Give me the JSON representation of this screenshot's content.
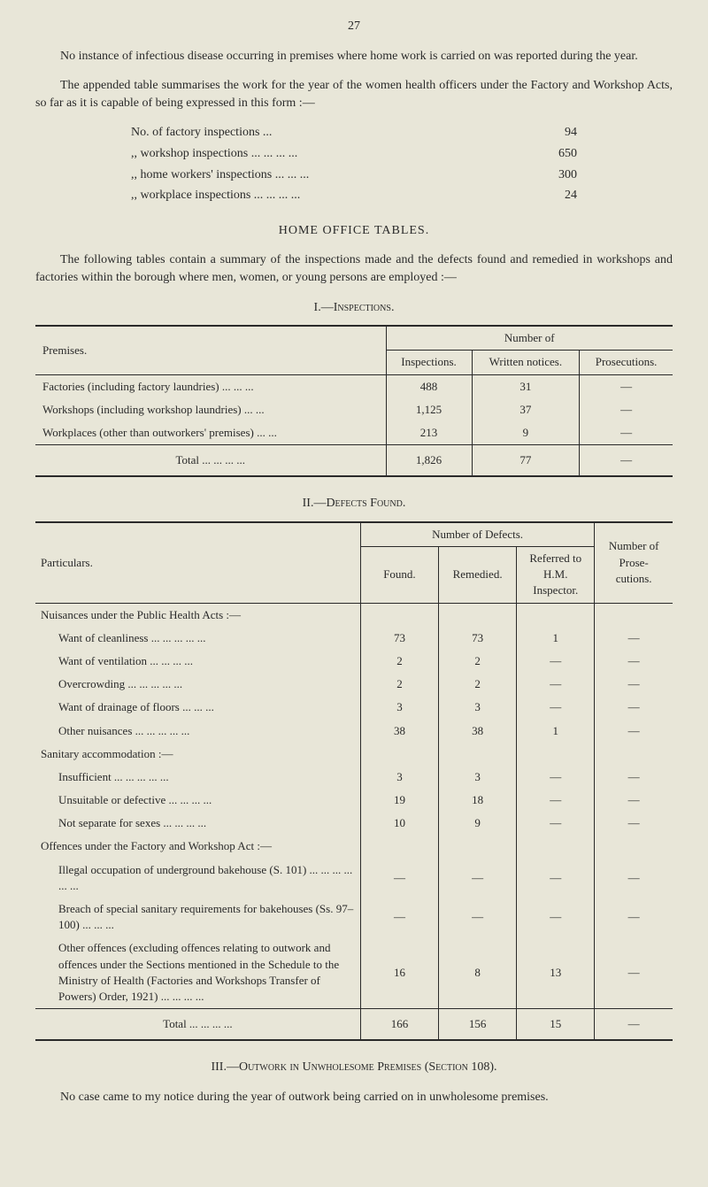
{
  "page_number": "27",
  "intro": {
    "para1": "No instance of infectious disease occurring in premises where home work is carried on was reported during the year.",
    "para2": "The appended table summarises the work for the year of the women health officers under the Factory and Workshop Acts, so far as it is capable of being expressed in this form :—"
  },
  "counts": [
    {
      "label": "No. of factory inspections ...",
      "value": "94"
    },
    {
      "label": ",, workshop inspections ...   ...   ...   ...",
      "value": "650"
    },
    {
      "label": ",, home workers' inspections   ...   ...   ...",
      "value": "300"
    },
    {
      "label": ",, workplace inspections ...   ...   ...   ...",
      "value": "24"
    }
  ],
  "home_office_heading": "HOME OFFICE TABLES.",
  "home_office_intro": "The following tables contain a summary of the inspections made and the defects found and remedied in workshops and factories within the borough where men, women, or young persons are employed :—",
  "table1": {
    "heading": "I.—Inspections.",
    "col_premises": "Premises.",
    "col_numberof": "Number of",
    "col_inspections": "Inspections.",
    "col_written": "Written notices.",
    "col_prosecutions": "Prosecutions.",
    "rows": [
      {
        "premises": "Factories (including factory laundries)   ...   ...   ...",
        "inspections": "488",
        "written": "31",
        "prosecutions": "—"
      },
      {
        "premises": "Workshops (including workshop laundries)   ...   ...",
        "inspections": "1,125",
        "written": "37",
        "prosecutions": "—"
      },
      {
        "premises": "Workplaces (other than outworkers' premises)   ...   ...",
        "inspections": "213",
        "written": "9",
        "prosecutions": "—"
      }
    ],
    "total_label": "Total   ...   ...   ...   ...",
    "total": {
      "inspections": "1,826",
      "written": "77",
      "prosecutions": "—"
    }
  },
  "table2": {
    "heading": "II.—Defects Found.",
    "col_particulars": "Particulars.",
    "col_numberof": "Number of Defects.",
    "col_found": "Found.",
    "col_remedied": "Remedied.",
    "col_referred": "Referred to H.M. Inspector.",
    "col_prosecutions": "Number of Prose- cutions.",
    "groups": [
      {
        "header": "Nuisances under the Public Health Acts :—",
        "rows": [
          {
            "label": "Want of cleanliness   ...   ...   ...   ...   ...",
            "found": "73",
            "rem": "73",
            "ref": "1",
            "pros": "—"
          },
          {
            "label": "Want of ventilation   ...   ...   ...   ...",
            "found": "2",
            "rem": "2",
            "ref": "—",
            "pros": "—"
          },
          {
            "label": "Overcrowding   ...   ...   ...   ...   ...",
            "found": "2",
            "rem": "2",
            "ref": "—",
            "pros": "—"
          },
          {
            "label": "Want of drainage of floors   ...   ...   ...",
            "found": "3",
            "rem": "3",
            "ref": "—",
            "pros": "—"
          },
          {
            "label": "Other nuisances   ...   ...   ...   ...   ...",
            "found": "38",
            "rem": "38",
            "ref": "1",
            "pros": "—"
          }
        ]
      },
      {
        "header": "Sanitary accommodation :—",
        "rows": [
          {
            "label": "Insufficient   ...   ...   ...   ...   ...",
            "found": "3",
            "rem": "3",
            "ref": "—",
            "pros": "—"
          },
          {
            "label": "Unsuitable or defective ...   ...   ...   ...",
            "found": "19",
            "rem": "18",
            "ref": "—",
            "pros": "—"
          },
          {
            "label": "Not separate for sexes   ...   ...   ...   ...",
            "found": "10",
            "rem": "9",
            "ref": "—",
            "pros": "—"
          }
        ]
      },
      {
        "header": "Offences under the Factory and Workshop Act :—",
        "rows": [
          {
            "label": "Illegal occupation of underground bakehouse (S. 101) ...   ...   ...   ...   ...   ...",
            "found": "—",
            "rem": "—",
            "ref": "—",
            "pros": "—"
          },
          {
            "label": "Breach of special sanitary requirements for bakehouses (Ss. 97–100)   ...   ...   ...",
            "found": "—",
            "rem": "—",
            "ref": "—",
            "pros": "—"
          },
          {
            "label": "Other offences (excluding offences relating to outwork and offences under the Sections mentioned in the Schedule to the Ministry of Health (Factories and Workshops Transfer of Powers) Order, 1921)   ...   ...   ...   ...",
            "found": "16",
            "rem": "8",
            "ref": "13",
            "pros": "—"
          }
        ]
      }
    ],
    "total_label": "Total ...   ...   ...   ...",
    "total": {
      "found": "166",
      "rem": "156",
      "ref": "15",
      "pros": "—"
    }
  },
  "section3": {
    "heading": "III.—Outwork in Unwholesome Premises (Section 108).",
    "para": "No case came to my notice during the year of outwork being carried on in unwholesome premises."
  }
}
